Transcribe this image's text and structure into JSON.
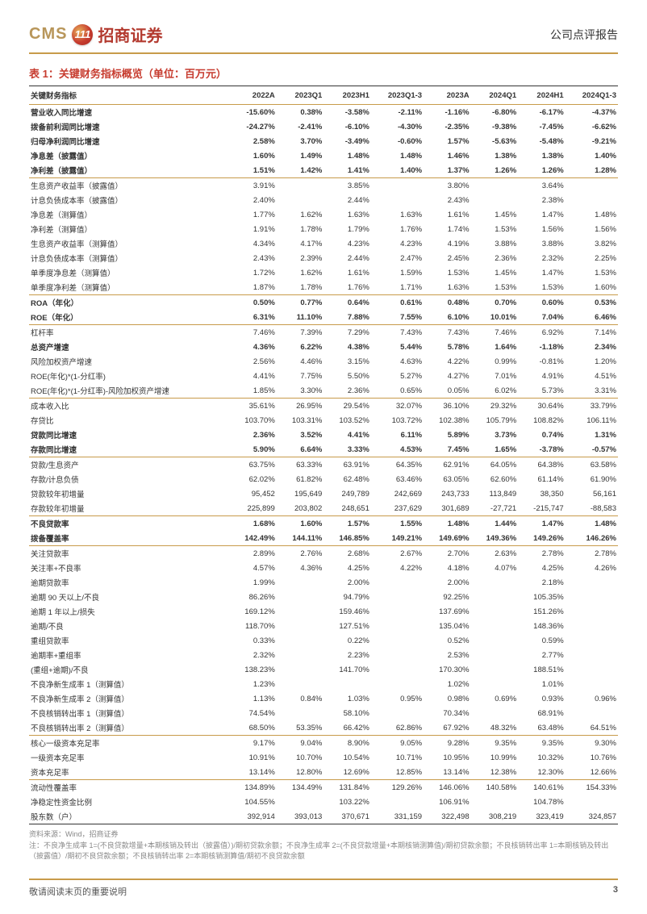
{
  "header": {
    "logo_en": "CMS",
    "logo_badge": "111",
    "logo_cn": "招商证券",
    "report_type": "公司点评报告"
  },
  "table": {
    "title": "表 1：关键财务指标概览（单位：百万元）",
    "columns": [
      "关键财务指标",
      "2022A",
      "2023Q1",
      "2023H1",
      "2023Q1-3",
      "2023A",
      "2024Q1",
      "2024H1",
      "2024Q1-3"
    ],
    "rows": [
      {
        "bold": true,
        "cells": [
          "营业收入同比增速",
          "-15.60%",
          "0.38%",
          "-3.58%",
          "-2.11%",
          "-1.16%",
          "-6.80%",
          "-6.17%",
          "-4.37%"
        ]
      },
      {
        "bold": true,
        "cells": [
          "拨备前利润同比增速",
          "-24.27%",
          "-2.41%",
          "-6.10%",
          "-4.30%",
          "-2.35%",
          "-9.38%",
          "-7.45%",
          "-6.62%"
        ]
      },
      {
        "bold": true,
        "cells": [
          "归母净利润同比增速",
          "2.58%",
          "3.70%",
          "-3.49%",
          "-0.60%",
          "1.57%",
          "-5.63%",
          "-5.48%",
          "-9.21%"
        ]
      },
      {
        "bold": true,
        "cells": [
          "净息差（披露值）",
          "1.60%",
          "1.49%",
          "1.48%",
          "1.48%",
          "1.46%",
          "1.38%",
          "1.38%",
          "1.40%"
        ]
      },
      {
        "bold": true,
        "cells": [
          "净利差（披露值）",
          "1.51%",
          "1.42%",
          "1.41%",
          "1.40%",
          "1.37%",
          "1.26%",
          "1.26%",
          "1.28%"
        ]
      },
      {
        "topline": true,
        "cells": [
          "生息资产收益率（披露值）",
          "3.91%",
          "",
          "3.85%",
          "",
          "3.80%",
          "",
          "3.64%",
          ""
        ]
      },
      {
        "cells": [
          "计息负债成本率（披露值）",
          "2.40%",
          "",
          "2.44%",
          "",
          "2.43%",
          "",
          "2.38%",
          ""
        ]
      },
      {
        "cells": [
          "净息差（测算值）",
          "1.77%",
          "1.62%",
          "1.63%",
          "1.63%",
          "1.61%",
          "1.45%",
          "1.47%",
          "1.48%"
        ]
      },
      {
        "cells": [
          "净利差（测算值）",
          "1.91%",
          "1.78%",
          "1.79%",
          "1.76%",
          "1.74%",
          "1.53%",
          "1.56%",
          "1.56%"
        ]
      },
      {
        "cells": [
          "生息资产收益率（测算值）",
          "4.34%",
          "4.17%",
          "4.23%",
          "4.23%",
          "4.19%",
          "3.88%",
          "3.88%",
          "3.82%"
        ]
      },
      {
        "cells": [
          "计息负债成本率（测算值）",
          "2.43%",
          "2.39%",
          "2.44%",
          "2.47%",
          "2.45%",
          "2.36%",
          "2.32%",
          "2.25%"
        ]
      },
      {
        "cells": [
          "单季度净息差（测算值）",
          "1.72%",
          "1.62%",
          "1.61%",
          "1.59%",
          "1.53%",
          "1.45%",
          "1.47%",
          "1.53%"
        ]
      },
      {
        "cells": [
          "单季度净利差（测算值）",
          "1.87%",
          "1.78%",
          "1.76%",
          "1.71%",
          "1.63%",
          "1.53%",
          "1.53%",
          "1.60%"
        ]
      },
      {
        "bold": true,
        "topline": true,
        "cells": [
          "ROA（年化）",
          "0.50%",
          "0.77%",
          "0.64%",
          "0.61%",
          "0.48%",
          "0.70%",
          "0.60%",
          "0.53%"
        ]
      },
      {
        "bold": true,
        "cells": [
          "ROE（年化）",
          "6.31%",
          "11.10%",
          "7.88%",
          "7.55%",
          "6.10%",
          "10.01%",
          "7.04%",
          "6.46%"
        ]
      },
      {
        "topline": true,
        "cells": [
          "杠杆率",
          "7.46%",
          "7.39%",
          "7.29%",
          "7.43%",
          "7.43%",
          "7.46%",
          "6.92%",
          "7.14%"
        ]
      },
      {
        "bold": true,
        "cells": [
          "总资产增速",
          "4.36%",
          "6.22%",
          "4.38%",
          "5.44%",
          "5.78%",
          "1.64%",
          "-1.18%",
          "2.34%"
        ]
      },
      {
        "cells": [
          "风险加权资产增速",
          "2.56%",
          "4.46%",
          "3.15%",
          "4.63%",
          "4.22%",
          "0.99%",
          "-0.81%",
          "1.20%"
        ]
      },
      {
        "cells": [
          "ROE(年化)*(1-分红率)",
          "4.41%",
          "7.75%",
          "5.50%",
          "5.27%",
          "4.27%",
          "7.01%",
          "4.91%",
          "4.51%"
        ]
      },
      {
        "cells": [
          "ROE(年化)*(1-分红率)-风险加权资产增速",
          "1.85%",
          "3.30%",
          "2.36%",
          "0.65%",
          "0.05%",
          "6.02%",
          "5.73%",
          "3.31%"
        ]
      },
      {
        "topline": true,
        "cells": [
          "成本收入比",
          "35.61%",
          "26.95%",
          "29.54%",
          "32.07%",
          "36.10%",
          "29.32%",
          "30.64%",
          "33.79%"
        ]
      },
      {
        "cells": [
          "存贷比",
          "103.70%",
          "103.31%",
          "103.52%",
          "103.72%",
          "102.38%",
          "105.79%",
          "108.82%",
          "106.11%"
        ]
      },
      {
        "bold": true,
        "cells": [
          "贷款同比增速",
          "2.36%",
          "3.52%",
          "4.41%",
          "6.11%",
          "5.89%",
          "3.73%",
          "0.74%",
          "1.31%"
        ]
      },
      {
        "bold": true,
        "cells": [
          "存款同比增速",
          "5.90%",
          "6.64%",
          "3.33%",
          "4.53%",
          "7.45%",
          "1.65%",
          "-3.78%",
          "-0.57%"
        ]
      },
      {
        "topline": true,
        "cells": [
          "贷款/生息资产",
          "63.75%",
          "63.33%",
          "63.91%",
          "64.35%",
          "62.91%",
          "64.05%",
          "64.38%",
          "63.58%"
        ]
      },
      {
        "cells": [
          "存款/计息负债",
          "62.02%",
          "61.82%",
          "62.48%",
          "63.46%",
          "63.05%",
          "62.60%",
          "61.14%",
          "61.90%"
        ]
      },
      {
        "cells": [
          "贷款较年初增量",
          "95,452",
          "195,649",
          "249,789",
          "242,669",
          "243,733",
          "113,849",
          "38,350",
          "56,161"
        ]
      },
      {
        "cells": [
          "存款较年初增量",
          "225,899",
          "203,802",
          "248,651",
          "237,629",
          "301,689",
          "-27,721",
          "-215,747",
          "-88,583"
        ]
      },
      {
        "bold": true,
        "topline": true,
        "cells": [
          "不良贷款率",
          "1.68%",
          "1.60%",
          "1.57%",
          "1.55%",
          "1.48%",
          "1.44%",
          "1.47%",
          "1.48%"
        ]
      },
      {
        "bold": true,
        "cells": [
          "拨备覆盖率",
          "142.49%",
          "144.11%",
          "146.85%",
          "149.21%",
          "149.69%",
          "149.36%",
          "149.26%",
          "146.26%"
        ]
      },
      {
        "topline": true,
        "cells": [
          "关注贷款率",
          "2.89%",
          "2.76%",
          "2.68%",
          "2.67%",
          "2.70%",
          "2.63%",
          "2.78%",
          "2.78%"
        ]
      },
      {
        "cells": [
          "关注率+不良率",
          "4.57%",
          "4.36%",
          "4.25%",
          "4.22%",
          "4.18%",
          "4.07%",
          "4.25%",
          "4.26%"
        ]
      },
      {
        "cells": [
          "逾期贷款率",
          "1.99%",
          "",
          "2.00%",
          "",
          "2.00%",
          "",
          "2.18%",
          ""
        ]
      },
      {
        "cells": [
          "逾期 90 天以上/不良",
          "86.26%",
          "",
          "94.79%",
          "",
          "92.25%",
          "",
          "105.35%",
          ""
        ]
      },
      {
        "cells": [
          "逾期 1 年以上/损失",
          "169.12%",
          "",
          "159.46%",
          "",
          "137.69%",
          "",
          "151.26%",
          ""
        ]
      },
      {
        "cells": [
          "逾期/不良",
          "118.70%",
          "",
          "127.51%",
          "",
          "135.04%",
          "",
          "148.36%",
          ""
        ]
      },
      {
        "cells": [
          "重组贷款率",
          "0.33%",
          "",
          "0.22%",
          "",
          "0.52%",
          "",
          "0.59%",
          ""
        ]
      },
      {
        "cells": [
          "逾期率+重组率",
          "2.32%",
          "",
          "2.23%",
          "",
          "2.53%",
          "",
          "2.77%",
          ""
        ]
      },
      {
        "cells": [
          "(重组+逾期)/不良",
          "138.23%",
          "",
          "141.70%",
          "",
          "170.30%",
          "",
          "188.51%",
          ""
        ]
      },
      {
        "cells": [
          "不良净新生成率 1（测算值）",
          "1.23%",
          "",
          "",
          "",
          "1.02%",
          "",
          "1.01%",
          ""
        ]
      },
      {
        "cells": [
          "不良净新生成率 2（测算值）",
          "1.13%",
          "0.84%",
          "1.03%",
          "0.95%",
          "0.98%",
          "0.69%",
          "0.93%",
          "0.96%"
        ]
      },
      {
        "cells": [
          "不良核销转出率 1（测算值）",
          "74.54%",
          "",
          "58.10%",
          "",
          "70.34%",
          "",
          "68.91%",
          ""
        ]
      },
      {
        "cells": [
          "不良核销转出率 2（测算值）",
          "68.50%",
          "53.35%",
          "66.42%",
          "62.86%",
          "67.92%",
          "48.32%",
          "63.48%",
          "64.51%"
        ]
      },
      {
        "topline": true,
        "cells": [
          "核心一级资本充足率",
          "9.17%",
          "9.04%",
          "8.90%",
          "9.05%",
          "9.28%",
          "9.35%",
          "9.35%",
          "9.30%"
        ]
      },
      {
        "cells": [
          "一级资本充足率",
          "10.91%",
          "10.70%",
          "10.54%",
          "10.71%",
          "10.95%",
          "10.99%",
          "10.32%",
          "10.76%"
        ]
      },
      {
        "cells": [
          "资本充足率",
          "13.14%",
          "12.80%",
          "12.69%",
          "12.85%",
          "13.14%",
          "12.38%",
          "12.30%",
          "12.66%"
        ]
      },
      {
        "topline": true,
        "cells": [
          "流动性覆盖率",
          "134.89%",
          "134.49%",
          "131.84%",
          "129.26%",
          "146.06%",
          "140.58%",
          "140.61%",
          "154.33%"
        ]
      },
      {
        "cells": [
          "净稳定性资金比例",
          "104.55%",
          "",
          "103.22%",
          "",
          "106.91%",
          "",
          "104.78%",
          ""
        ]
      },
      {
        "lastline": true,
        "cells": [
          "股东数（户）",
          "392,914",
          "393,013",
          "370,671",
          "331,159",
          "322,498",
          "308,219",
          "323,419",
          "324,857"
        ]
      }
    ]
  },
  "notes": {
    "source": "资料来源：Wind，招商证券",
    "note": "注：不良净生成率 1=(不良贷款增量+本期核销及转出（披露值）)/期初贷款余额；不良净生成率 2=(不良贷款增量+本期核销测算值)/期初贷款余额；不良核销转出率 1=本期核销及转出（披露值）/期初不良贷款余额；不良核销转出率 2=本期核销测算值/期初不良贷款余额"
  },
  "footer": {
    "disclaimer": "敬请阅读末页的重要说明",
    "page": "3"
  }
}
